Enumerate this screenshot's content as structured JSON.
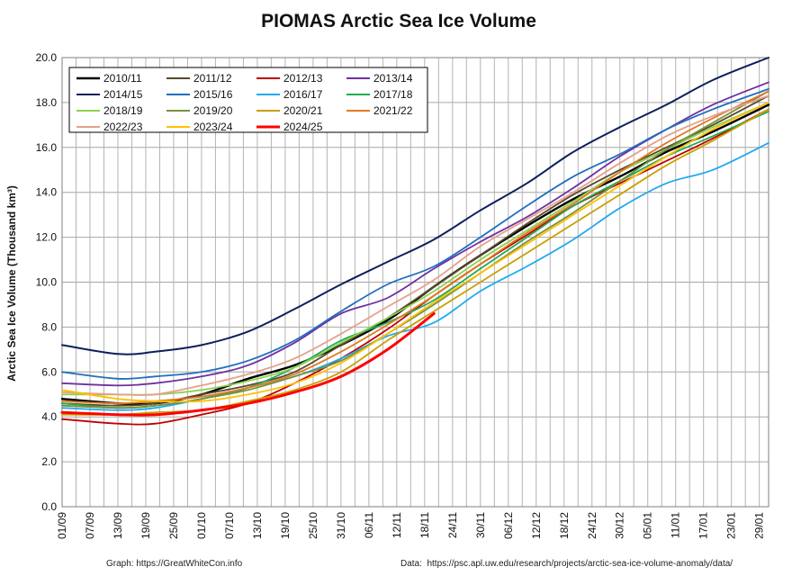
{
  "chart_data": {
    "type": "line",
    "title": "PIOMAS Arctic Sea Ice Volume",
    "xlabel": "",
    "ylabel": "Arctic Sea Ice Volume (Thousand km³)",
    "ylim": [
      0,
      20
    ],
    "yticks": [
      "0.0",
      "2.0",
      "4.0",
      "6.0",
      "8.0",
      "10.0",
      "12.0",
      "14.0",
      "16.0",
      "18.0",
      "20.0"
    ],
    "x_tick_labels": [
      "01/09",
      "07/09",
      "13/09",
      "19/09",
      "25/09",
      "01/10",
      "07/10",
      "13/10",
      "19/10",
      "25/10",
      "31/10",
      "06/11",
      "12/11",
      "18/11",
      "24/11",
      "30/11",
      "06/12",
      "12/12",
      "18/12",
      "24/12",
      "30/12",
      "05/01",
      "11/01",
      "17/01",
      "23/01",
      "29/01"
    ],
    "x_tick_day": [
      0,
      6,
      12,
      18,
      24,
      30,
      36,
      42,
      48,
      54,
      60,
      66,
      72,
      78,
      84,
      90,
      96,
      102,
      108,
      114,
      120,
      126,
      132,
      138,
      144,
      150
    ],
    "xlim_day": [
      0,
      152
    ],
    "grid": true,
    "legend_position": "top-left",
    "x_key": [
      0,
      12,
      20,
      30,
      40,
      50,
      60,
      70,
      80,
      90,
      100,
      110,
      120,
      130,
      140,
      152
    ],
    "series": [
      {
        "name": "2010/11",
        "color": "#000000",
        "width": 2.4,
        "end": 152,
        "values": [
          4.8,
          4.6,
          4.6,
          5.0,
          5.7,
          6.3,
          7.2,
          8.3,
          9.8,
          11.2,
          12.5,
          13.7,
          14.7,
          15.8,
          16.7,
          17.9
        ]
      },
      {
        "name": "2011/12",
        "color": "#5a4a2a",
        "width": 1.8,
        "end": 152,
        "values": [
          4.6,
          4.5,
          4.6,
          5.0,
          5.4,
          6.0,
          7.2,
          8.4,
          9.8,
          11.2,
          12.6,
          13.9,
          15.0,
          16.0,
          17.0,
          18.3
        ]
      },
      {
        "name": "2012/13",
        "color": "#c00000",
        "width": 1.8,
        "end": 152,
        "values": [
          3.9,
          3.7,
          3.7,
          4.1,
          4.6,
          5.5,
          6.6,
          7.9,
          9.4,
          10.8,
          12.1,
          13.4,
          14.4,
          15.4,
          16.4,
          17.7
        ]
      },
      {
        "name": "2013/14",
        "color": "#7030a0",
        "width": 1.8,
        "end": 152,
        "values": [
          5.5,
          5.4,
          5.5,
          5.8,
          6.3,
          7.3,
          8.6,
          9.3,
          10.6,
          11.8,
          12.9,
          14.2,
          15.6,
          16.8,
          17.9,
          18.9
        ]
      },
      {
        "name": "2014/15",
        "color": "#0d1f5c",
        "width": 2.0,
        "end": 152,
        "values": [
          7.2,
          6.8,
          6.9,
          7.2,
          7.8,
          8.8,
          9.9,
          10.9,
          11.9,
          13.2,
          14.4,
          15.8,
          16.9,
          17.9,
          19.0,
          20.0
        ]
      },
      {
        "name": "2015/16",
        "color": "#1f6fbf",
        "width": 1.8,
        "end": 152,
        "values": [
          6.0,
          5.7,
          5.8,
          6.0,
          6.5,
          7.4,
          8.7,
          9.9,
          10.7,
          12.0,
          13.4,
          14.7,
          15.7,
          16.8,
          17.7,
          18.6
        ]
      },
      {
        "name": "2016/17",
        "color": "#22aaee",
        "width": 1.8,
        "end": 152,
        "values": [
          4.4,
          4.3,
          4.4,
          4.8,
          5.3,
          5.8,
          6.6,
          7.6,
          8.2,
          9.6,
          10.7,
          11.9,
          13.3,
          14.4,
          15.0,
          16.2
        ]
      },
      {
        "name": "2017/18",
        "color": "#22aa55",
        "width": 1.8,
        "end": 152,
        "values": [
          4.6,
          4.4,
          4.5,
          4.8,
          5.3,
          6.2,
          7.4,
          8.2,
          9.2,
          10.6,
          12.0,
          13.4,
          14.5,
          15.6,
          16.5,
          17.6
        ]
      },
      {
        "name": "2018/19",
        "color": "#8fd14f",
        "width": 1.8,
        "end": 152,
        "values": [
          5.0,
          5.0,
          5.0,
          5.2,
          5.6,
          6.2,
          7.3,
          8.4,
          9.6,
          11.0,
          12.3,
          13.6,
          14.9,
          15.9,
          16.9,
          18.0
        ]
      },
      {
        "name": "2019/20",
        "color": "#77933c",
        "width": 1.8,
        "end": 152,
        "values": [
          4.5,
          4.4,
          4.5,
          4.8,
          5.2,
          5.8,
          6.5,
          7.7,
          9.0,
          10.4,
          11.8,
          13.1,
          14.5,
          15.9,
          17.1,
          18.5
        ]
      },
      {
        "name": "2020/21",
        "color": "#c9a000",
        "width": 1.8,
        "end": 152,
        "values": [
          4.1,
          4.1,
          4.2,
          4.3,
          4.7,
          5.2,
          6.0,
          7.4,
          8.7,
          10.0,
          11.3,
          12.6,
          13.9,
          15.2,
          16.3,
          17.7
        ]
      },
      {
        "name": "2021/22",
        "color": "#e07b20",
        "width": 1.8,
        "end": 152,
        "values": [
          4.7,
          4.6,
          4.7,
          4.9,
          5.3,
          5.9,
          6.9,
          8.1,
          9.4,
          10.8,
          12.2,
          13.5,
          14.9,
          16.2,
          17.3,
          18.5
        ]
      },
      {
        "name": "2022/23",
        "color": "#e6a08c",
        "width": 1.8,
        "end": 152,
        "values": [
          5.1,
          5.0,
          5.0,
          5.4,
          5.9,
          6.6,
          7.7,
          8.9,
          10.1,
          11.6,
          12.8,
          14.0,
          15.3,
          16.5,
          17.4,
          18.3
        ]
      },
      {
        "name": "2023/24",
        "color": "#ffc000",
        "width": 1.8,
        "end": 152,
        "values": [
          5.2,
          4.8,
          4.7,
          4.7,
          5.0,
          5.5,
          6.4,
          7.7,
          9.1,
          10.4,
          11.7,
          13.0,
          14.3,
          15.6,
          16.8,
          18.0
        ]
      },
      {
        "name": "2024/25",
        "color": "#ff0000",
        "width": 3.0,
        "end": 78,
        "values": [
          4.2,
          4.1,
          4.1,
          4.3,
          4.6,
          5.1,
          5.8,
          7.0,
          8.6
        ]
      }
    ]
  },
  "credits": {
    "left": "Graph: https://GreatWhiteCon.info",
    "right": "Data:  https://psc.apl.uw.edu/research/projects/arctic-sea-ice-volume-anomaly/data/"
  }
}
